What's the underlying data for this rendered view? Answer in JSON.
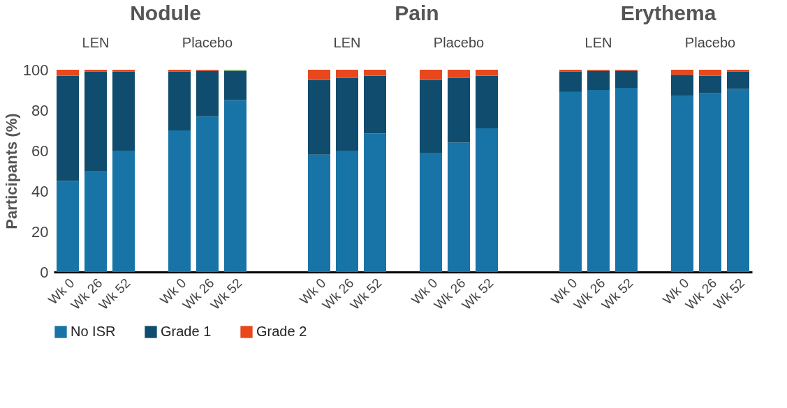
{
  "chart_data": {
    "type": "bar",
    "stacked": true,
    "legend": "bottom",
    "ylabel": "Participants (%)",
    "ylim": [
      0,
      100
    ],
    "yticks": [
      0,
      20,
      40,
      60,
      80,
      100
    ],
    "annotations": [
      "Nodule",
      "LEN",
      "Placebo",
      "Pain",
      "LEN",
      "Placebo",
      "Erythema",
      "LEN",
      "Placebo"
    ],
    "categories": [
      "Wk 0",
      "Wk 26",
      "Wk 52",
      "Wk 0",
      "Wk 26",
      "Wk 52",
      "Wk 0",
      "Wk 26",
      "Wk 52",
      "Wk 0",
      "Wk 26",
      "Wk 52",
      "Wk 0",
      "Wk 26",
      "Wk 52",
      "Wk 0",
      "Wk 26",
      "Wk 52"
    ],
    "series": [
      {
        "name": "No ISR",
        "color": "#1874a6",
        "values": [
          45,
          50,
          60,
          70,
          77,
          85,
          58,
          60,
          68.5,
          59,
          64,
          71,
          89,
          90,
          91,
          87,
          88.5,
          90.5
        ]
      },
      {
        "name": "Grade 1",
        "color": "#0f4c6e",
        "values": [
          52,
          49,
          39,
          29,
          22.5,
          14.5,
          37,
          36,
          28.5,
          36,
          32,
          26,
          10,
          9.5,
          8.5,
          10.5,
          8.5,
          8.5
        ]
      },
      {
        "name": "Grade 2",
        "color": "#e8481c",
        "values": [
          3,
          1,
          1,
          1,
          0.5,
          0,
          5,
          4,
          3,
          5,
          4,
          3,
          1,
          0.5,
          0.5,
          2.5,
          3,
          1
        ]
      },
      {
        "color": "#8db56b",
        "values": [
          0,
          0,
          0,
          0,
          0,
          0.5,
          0,
          0,
          0,
          0,
          0,
          0,
          0,
          0,
          0,
          0,
          0,
          0
        ]
      }
    ]
  }
}
